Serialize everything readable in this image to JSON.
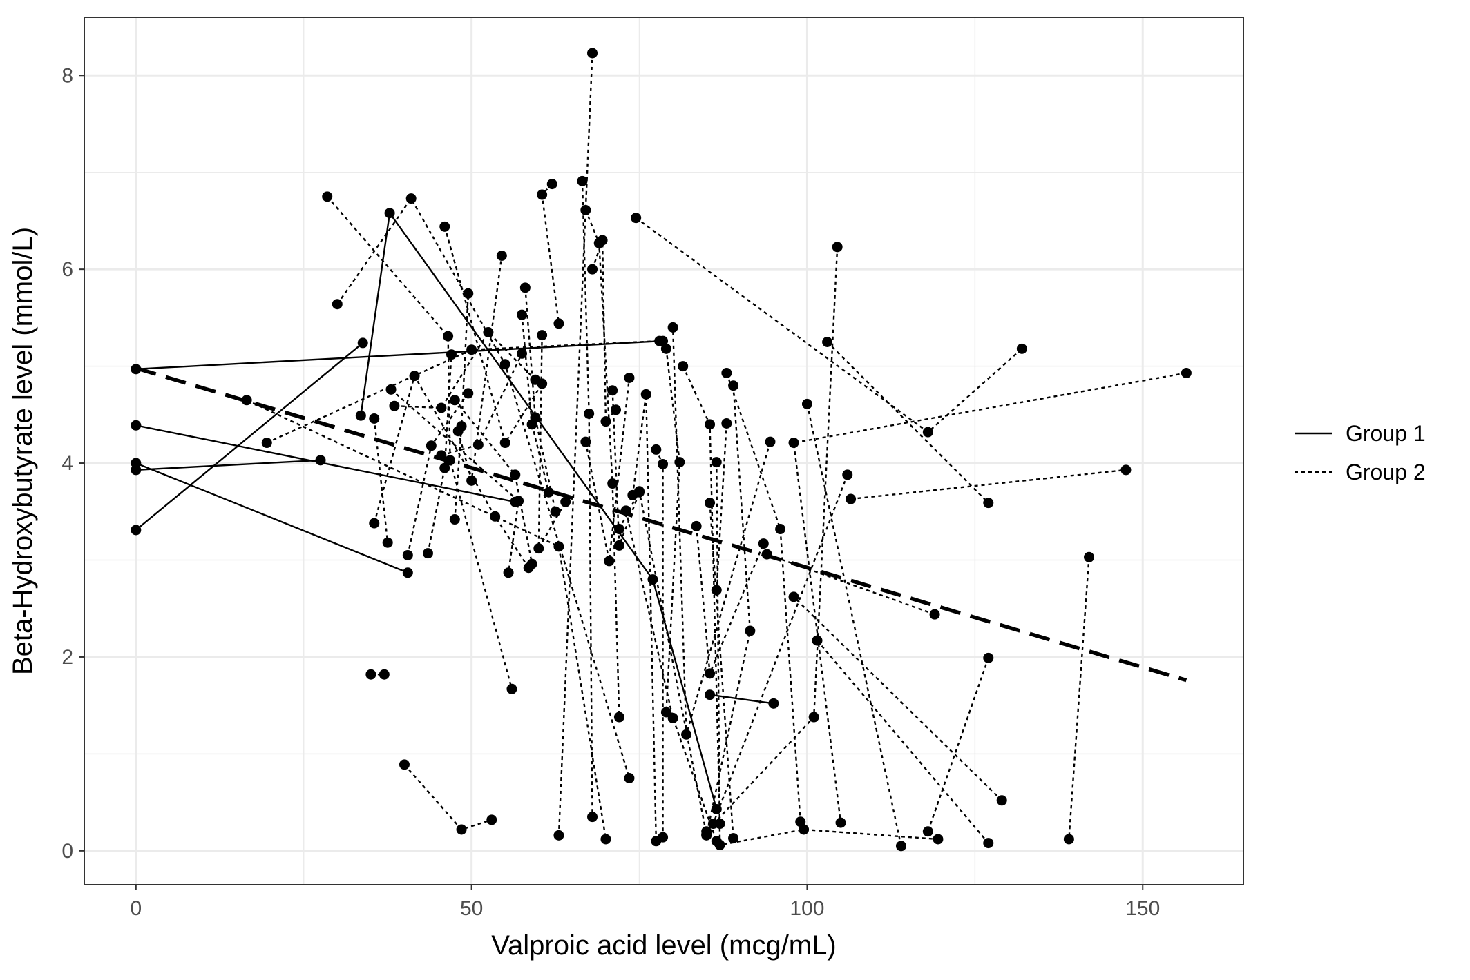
{
  "chart_data": {
    "type": "line",
    "title": "",
    "xlabel": "Valproic acid level (mcg/mL)",
    "ylabel": "Beta-Hydroxybutyrate level (mmol/L)",
    "xlim": [
      -7.7,
      165
    ],
    "ylim": [
      -0.35,
      8.6
    ],
    "x_ticks": [
      0,
      50,
      100,
      150
    ],
    "y_ticks": [
      0,
      2,
      4,
      6,
      8
    ],
    "grid": true,
    "legend": {
      "position": "right",
      "entries": [
        {
          "label": "Group 1",
          "linestyle": "solid"
        },
        {
          "label": "Group 2",
          "linestyle": "dotted"
        }
      ]
    },
    "colors": {
      "points": "#000000",
      "grid": "#ebebeb",
      "panel_border": "#333333"
    },
    "series": [
      {
        "group": "Group 1",
        "points": [
          [
            0,
            4.97
          ],
          [
            78.5,
            5.26
          ]
        ]
      },
      {
        "group": "Group 1",
        "points": [
          [
            0,
            3.31
          ],
          [
            33.8,
            5.24
          ]
        ]
      },
      {
        "group": "Group 1",
        "points": [
          [
            0,
            4.39
          ],
          [
            56.5,
            3.6
          ]
        ]
      },
      {
        "group": "Group 1",
        "points": [
          [
            0,
            4.0
          ],
          [
            40.5,
            2.87
          ]
        ]
      },
      {
        "group": "Group 1",
        "points": [
          [
            0,
            3.93
          ],
          [
            27.5,
            4.03
          ]
        ]
      },
      {
        "group": "Group 1",
        "points": [
          [
            33.5,
            4.49
          ],
          [
            37.8,
            6.58
          ],
          [
            77,
            2.8
          ],
          [
            86.5,
            0.43
          ]
        ]
      },
      {
        "group": "Group 1",
        "points": [
          [
            85.5,
            1.61
          ],
          [
            95,
            1.52
          ]
        ]
      },
      {
        "group": "Group 2",
        "points": [
          [
            28.5,
            6.75
          ],
          [
            46.5,
            5.31
          ],
          [
            46.8,
            4.03
          ],
          [
            56,
            1.67
          ]
        ]
      },
      {
        "group": "Group 2",
        "points": [
          [
            30,
            5.64
          ],
          [
            41,
            6.73
          ],
          [
            55,
            5.02
          ],
          [
            73.5,
            0.75
          ]
        ]
      },
      {
        "group": "Group 2",
        "points": [
          [
            40,
            0.89
          ],
          [
            48.5,
            0.22
          ],
          [
            53,
            0.32
          ]
        ]
      },
      {
        "group": "Group 2",
        "points": [
          [
            35,
            1.82
          ],
          [
            37,
            1.82
          ]
        ]
      },
      {
        "group": "Group 2",
        "points": [
          [
            68,
            8.23
          ],
          [
            63,
            0.16
          ]
        ]
      },
      {
        "group": "Group 2",
        "points": [
          [
            74.5,
            6.53
          ],
          [
            118,
            4.32
          ],
          [
            132,
            5.18
          ]
        ]
      },
      {
        "group": "Group 2",
        "points": [
          [
            35.5,
            4.46
          ],
          [
            37.5,
            3.18
          ]
        ]
      },
      {
        "group": "Group 2",
        "points": [
          [
            16.5,
            4.65
          ],
          [
            63,
            3.14
          ],
          [
            70,
            0.12
          ]
        ]
      },
      {
        "group": "Group 2",
        "points": [
          [
            19.5,
            4.21
          ],
          [
            50,
            5.17
          ],
          [
            78,
            5.26
          ]
        ]
      },
      {
        "group": "Group 2",
        "points": [
          [
            104.5,
            6.23
          ],
          [
            101,
            1.38
          ],
          [
            85,
            0.2
          ]
        ]
      },
      {
        "group": "Group 2",
        "points": [
          [
            103,
            5.25
          ],
          [
            127,
            3.59
          ]
        ]
      },
      {
        "group": "Group 2",
        "points": [
          [
            106.5,
            3.63
          ],
          [
            147.5,
            3.93
          ]
        ]
      },
      {
        "group": "Group 2",
        "points": [
          [
            156.5,
            4.93
          ],
          [
            98,
            4.21
          ],
          [
            105,
            0.29
          ]
        ]
      },
      {
        "group": "Group 2",
        "points": [
          [
            100,
            4.61
          ],
          [
            114,
            0.05
          ]
        ]
      },
      {
        "group": "Group 2",
        "points": [
          [
            142,
            3.03
          ],
          [
            139,
            0.12
          ]
        ]
      },
      {
        "group": "Group 2",
        "points": [
          [
            127,
            1.99
          ],
          [
            118,
            0.2
          ]
        ]
      },
      {
        "group": "Group 2",
        "points": [
          [
            119,
            2.44
          ],
          [
            94,
            3.06
          ]
        ]
      },
      {
        "group": "Group 2",
        "points": [
          [
            101.5,
            2.17
          ],
          [
            127,
            0.08
          ]
        ]
      },
      {
        "group": "Group 2",
        "points": [
          [
            129,
            0.52
          ],
          [
            98,
            2.62
          ]
        ]
      },
      {
        "group": "Group 2",
        "points": [
          [
            106,
            3.88
          ],
          [
            86,
            0.28
          ]
        ]
      },
      {
        "group": "Group 2",
        "points": [
          [
            88,
            4.93
          ],
          [
            96,
            3.32
          ],
          [
            99,
            0.3
          ]
        ]
      },
      {
        "group": "Group 2",
        "points": [
          [
            94.5,
            4.22
          ],
          [
            82,
            1.2
          ],
          [
            80,
            5.4
          ]
        ]
      },
      {
        "group": "Group 2",
        "points": [
          [
            89,
            4.8
          ],
          [
            91.5,
            2.27
          ],
          [
            85,
            0.16
          ]
        ]
      },
      {
        "group": "Group 2",
        "points": [
          [
            83.5,
            3.35
          ],
          [
            85.5,
            1.83
          ],
          [
            93.5,
            3.17
          ]
        ]
      },
      {
        "group": "Group 2",
        "points": [
          [
            86.5,
            4.01
          ],
          [
            87,
            0.06
          ],
          [
            99.5,
            0.22
          ],
          [
            119.5,
            0.12
          ]
        ]
      },
      {
        "group": "Group 2",
        "points": [
          [
            88,
            4.41
          ],
          [
            86.5,
            2.69
          ]
        ]
      },
      {
        "group": "Group 2",
        "points": [
          [
            85.5,
            3.59
          ],
          [
            89,
            0.13
          ]
        ]
      },
      {
        "group": "Group 2",
        "points": [
          [
            38,
            4.76
          ],
          [
            57,
            3.61
          ],
          [
            55.5,
            2.87
          ]
        ]
      },
      {
        "group": "Group 2",
        "points": [
          [
            38.5,
            4.59
          ],
          [
            45.5,
            4.57
          ],
          [
            52.5,
            5.35
          ],
          [
            59.5,
            4.86
          ]
        ]
      },
      {
        "group": "Group 2",
        "points": [
          [
            35.5,
            3.38
          ],
          [
            41.5,
            4.9
          ],
          [
            53.5,
            3.45
          ],
          [
            58.5,
            2.92
          ]
        ]
      },
      {
        "group": "Group 2",
        "points": [
          [
            40.5,
            3.05
          ],
          [
            44,
            4.18
          ],
          [
            49.5,
            4.72
          ]
        ]
      },
      {
        "group": "Group 2",
        "points": [
          [
            43.5,
            3.07
          ],
          [
            46,
            3.95
          ],
          [
            47,
            5.12
          ]
        ]
      },
      {
        "group": "Group 2",
        "points": [
          [
            47.5,
            3.42
          ],
          [
            48.5,
            4.38
          ],
          [
            49.5,
            5.75
          ]
        ]
      },
      {
        "group": "Group 2",
        "points": [
          [
            46,
            6.44
          ],
          [
            55,
            4.21
          ],
          [
            60.5,
            4.82
          ]
        ]
      },
      {
        "group": "Group 2",
        "points": [
          [
            48,
            4.33
          ],
          [
            50,
            3.82
          ],
          [
            54.5,
            6.14
          ]
        ]
      },
      {
        "group": "Group 2",
        "points": [
          [
            45.5,
            4.08
          ],
          [
            51,
            4.19
          ],
          [
            57.5,
            5.13
          ]
        ]
      },
      {
        "group": "Group 2",
        "points": [
          [
            47.5,
            4.65
          ],
          [
            56.5,
            3.88
          ],
          [
            59,
            2.96
          ]
        ]
      },
      {
        "group": "Group 2",
        "points": [
          [
            57.5,
            5.53
          ],
          [
            59,
            4.4
          ],
          [
            61.5,
            3.7
          ]
        ]
      },
      {
        "group": "Group 2",
        "points": [
          [
            58,
            5.81
          ],
          [
            59.5,
            4.47
          ],
          [
            62.5,
            3.5
          ]
        ]
      },
      {
        "group": "Group 2",
        "points": [
          [
            60.5,
            5.32
          ],
          [
            60,
            3.12
          ],
          [
            64,
            3.6
          ]
        ]
      },
      {
        "group": "Group 2",
        "points": [
          [
            62,
            6.88
          ],
          [
            60.5,
            6.77
          ],
          [
            63,
            5.44
          ]
        ]
      },
      {
        "group": "Group 2",
        "points": [
          [
            66.5,
            6.91
          ],
          [
            67.5,
            4.51
          ],
          [
            68,
            0.35
          ]
        ]
      },
      {
        "group": "Group 2",
        "points": [
          [
            67,
            6.61
          ],
          [
            69,
            6.27
          ],
          [
            71,
            3.79
          ],
          [
            72,
            1.38
          ]
        ]
      },
      {
        "group": "Group 2",
        "points": [
          [
            68,
            6.0
          ],
          [
            69.5,
            6.3
          ],
          [
            70,
            4.43
          ],
          [
            71.5,
            4.55
          ]
        ]
      },
      {
        "group": "Group 2",
        "points": [
          [
            67,
            4.22
          ],
          [
            70.5,
            2.99
          ],
          [
            73.5,
            4.88
          ]
        ]
      },
      {
        "group": "Group 2",
        "points": [
          [
            71,
            4.75
          ],
          [
            72,
            3.15
          ],
          [
            75,
            3.7
          ]
        ]
      },
      {
        "group": "Group 2",
        "points": [
          [
            74,
            3.67
          ],
          [
            76,
            4.71
          ],
          [
            77.5,
            0.1
          ]
        ]
      },
      {
        "group": "Group 2",
        "points": [
          [
            77.5,
            4.14
          ],
          [
            78.5,
            3.99
          ],
          [
            78.5,
            0.14
          ]
        ]
      },
      {
        "group": "Group 2",
        "points": [
          [
            79,
            5.18
          ],
          [
            81,
            4.01
          ],
          [
            79,
            1.43
          ]
        ]
      },
      {
        "group": "Group 2",
        "points": [
          [
            72,
            3.32
          ],
          [
            75,
            3.71
          ],
          [
            85,
            0.17
          ]
        ]
      },
      {
        "group": "Group 2",
        "points": [
          [
            73,
            3.51
          ],
          [
            80,
            1.37
          ],
          [
            86.5,
            0.1
          ]
        ]
      },
      {
        "group": "Group 2",
        "points": [
          [
            81.5,
            5.0
          ],
          [
            85.5,
            4.4
          ],
          [
            87,
            0.28
          ]
        ]
      }
    ],
    "trend_line": {
      "style": "long-dash",
      "points": [
        [
          0,
          4.98
        ],
        [
          156.5,
          1.76
        ]
      ]
    }
  }
}
